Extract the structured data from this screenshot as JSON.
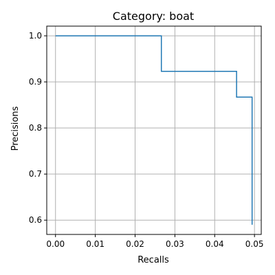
{
  "chart_data": {
    "type": "line",
    "title": "Category: boat",
    "xlabel": "Recalls",
    "ylabel": "Precisions",
    "xlim": [
      -0.0022,
      0.0517
    ],
    "ylim": [
      0.569,
      1.021
    ],
    "xticks": [
      0.0,
      0.01,
      0.02,
      0.03,
      0.04,
      0.05
    ],
    "xtick_labels": [
      "0.00",
      "0.01",
      "0.02",
      "0.03",
      "0.04",
      "0.05"
    ],
    "yticks": [
      0.6,
      0.7,
      0.8,
      0.9,
      1.0
    ],
    "ytick_labels": [
      "0.6",
      "0.7",
      "0.8",
      "0.9",
      "1.0"
    ],
    "grid": true,
    "series": [
      {
        "color": "#1f77b4",
        "x": [
          0.0,
          0.0266,
          0.0266,
          0.0455,
          0.0455,
          0.0494,
          0.0494
        ],
        "y": [
          1.0,
          1.0,
          0.923,
          0.923,
          0.867,
          0.867,
          0.59
        ]
      }
    ]
  }
}
